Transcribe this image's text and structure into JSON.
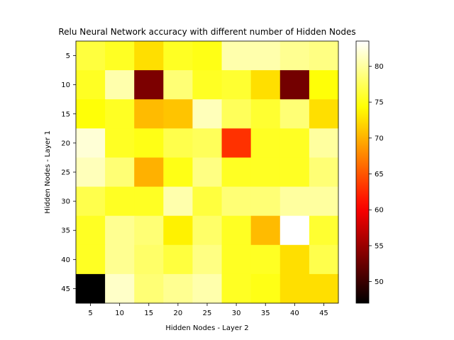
{
  "chart_data": {
    "type": "heatmap",
    "title": "Relu Neural Network accuracy with different number of Hidden Nodes",
    "xlabel": "Hidden Nodes - Layer 2",
    "ylabel": "Hidden Nodes - Layer 1",
    "x_categories": [
      "5",
      "10",
      "15",
      "20",
      "25",
      "30",
      "35",
      "40",
      "45"
    ],
    "y_categories": [
      "5",
      "10",
      "15",
      "20",
      "25",
      "30",
      "35",
      "40",
      "45"
    ],
    "values": [
      [
        76.5,
        75.5,
        72.5,
        75.5,
        75.0,
        80.5,
        80.5,
        79.5,
        79.0
      ],
      [
        75.5,
        80.5,
        53.5,
        78.5,
        75.5,
        76.0,
        72.5,
        53.0,
        74.5
      ],
      [
        74.5,
        75.5,
        70.5,
        71.0,
        81.0,
        77.5,
        76.0,
        78.5,
        72.5
      ],
      [
        82.0,
        75.5,
        75.0,
        77.0,
        77.5,
        63.0,
        75.5,
        75.5,
        80.0
      ],
      [
        81.0,
        78.5,
        70.0,
        75.0,
        79.0,
        75.5,
        75.5,
        75.5,
        78.5
      ],
      [
        77.0,
        75.5,
        75.5,
        80.5,
        76.5,
        78.5,
        78.5,
        80.0,
        80.0
      ],
      [
        75.5,
        79.5,
        78.5,
        73.5,
        78.0,
        75.5,
        70.5,
        83.5,
        76.0
      ],
      [
        75.5,
        79.5,
        78.0,
        76.5,
        79.0,
        75.5,
        75.5,
        72.5,
        77.0
      ],
      [
        47.0,
        81.5,
        78.5,
        79.5,
        80.5,
        75.5,
        75.0,
        72.5,
        72.5
      ]
    ],
    "zlim": [
      47,
      83.5
    ],
    "colormap": "hot",
    "colorbar_ticks": [
      50,
      55,
      60,
      65,
      70,
      75,
      80
    ],
    "grid": false
  }
}
